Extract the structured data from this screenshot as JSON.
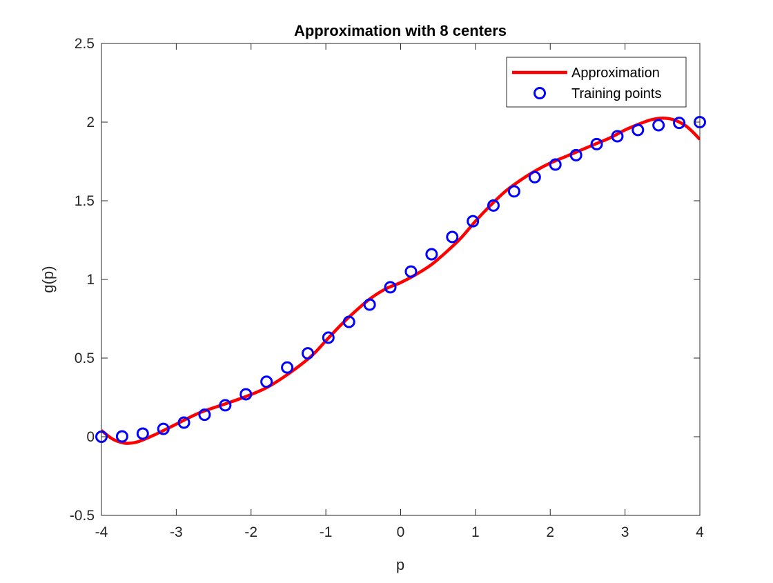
{
  "chart_data": {
    "type": "line",
    "title": "Approximation with 8 centers",
    "xlabel": "p",
    "ylabel": "g(p)",
    "xlim": [
      -4,
      4
    ],
    "ylim": [
      -0.5,
      2.5
    ],
    "xticks": [
      -4,
      -3,
      -2,
      -1,
      0,
      1,
      2,
      3,
      4
    ],
    "xtick_labels": [
      "-4",
      "-3",
      "-2",
      "-1",
      "0",
      "1",
      "2",
      "3",
      "4"
    ],
    "yticks": [
      -0.5,
      0,
      0.5,
      1,
      1.5,
      2,
      2.5
    ],
    "ytick_labels": [
      "-0.5",
      "0",
      "0.5",
      "1",
      "1.5",
      "2",
      "2.5"
    ],
    "grid": false,
    "legend_location": "top-right",
    "series": [
      {
        "name": "Approximation",
        "style": "line",
        "color": "#ff0000",
        "x": [
          -4.0,
          -3.85,
          -3.7,
          -3.6,
          -3.5,
          -3.3,
          -3.0,
          -2.7,
          -2.4,
          -2.1,
          -1.8,
          -1.5,
          -1.2,
          -1.0,
          -0.8,
          -0.6,
          -0.4,
          -0.2,
          0.0,
          0.2,
          0.4,
          0.6,
          0.8,
          1.0,
          1.2,
          1.4,
          1.6,
          1.8,
          2.0,
          2.2,
          2.4,
          2.6,
          2.8,
          3.0,
          3.2,
          3.35,
          3.5,
          3.65,
          3.8,
          3.9,
          4.0
        ],
        "y": [
          0.04,
          -0.015,
          -0.04,
          -0.04,
          -0.03,
          0.01,
          0.08,
          0.15,
          0.2,
          0.25,
          0.31,
          0.4,
          0.51,
          0.61,
          0.71,
          0.8,
          0.88,
          0.94,
          0.98,
          1.03,
          1.09,
          1.17,
          1.26,
          1.37,
          1.47,
          1.56,
          1.63,
          1.69,
          1.74,
          1.78,
          1.82,
          1.86,
          1.9,
          1.95,
          1.99,
          2.015,
          2.025,
          2.015,
          1.98,
          1.94,
          1.89
        ]
      },
      {
        "name": "Training points",
        "style": "markers",
        "marker": "circle",
        "color": "#0000ff",
        "x": [
          -4.0,
          -3.724,
          -3.448,
          -3.172,
          -2.897,
          -2.621,
          -2.345,
          -2.069,
          -1.793,
          -1.517,
          -1.241,
          -0.966,
          -0.69,
          -0.414,
          -0.138,
          0.138,
          0.414,
          0.69,
          0.966,
          1.241,
          1.517,
          1.793,
          2.069,
          2.345,
          2.621,
          2.897,
          3.172,
          3.448,
          3.724,
          4.0
        ],
        "y": [
          0.0,
          0.002,
          0.02,
          0.05,
          0.09,
          0.14,
          0.2,
          0.27,
          0.35,
          0.44,
          0.53,
          0.63,
          0.73,
          0.84,
          0.95,
          1.05,
          1.16,
          1.27,
          1.37,
          1.47,
          1.56,
          1.65,
          1.73,
          1.79,
          1.86,
          1.91,
          1.95,
          1.98,
          1.995,
          2.0
        ]
      }
    ]
  }
}
